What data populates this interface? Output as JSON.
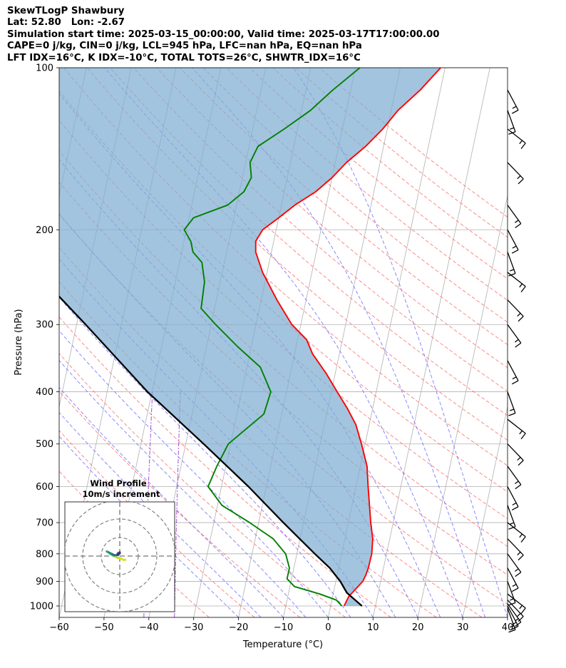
{
  "header": {
    "lines": [
      "SkewTLogP Shawbury",
      "Lat: 52.80   Lon: -2.67",
      "Simulation start time: 2025-03-15_00:00:00, Valid time: 2025-03-17T17:00:00.00",
      "CAPE=0 j/kg, CIN=0 j/kg, LCL=945 hPa, LFC=nan hPa, EQ=nan hPa",
      "LFT IDX=16$^\\circ$C, K IDX=-10$^\\circ$C, TOTAL TOTS=26$^\\circ$C, SHWTR_IDX=16$^\\circ$C"
    ]
  },
  "chart_data": {
    "type": "skewt",
    "xlabel": "Temperature ($^\\circ$C)",
    "ylabel": "Pressure (hPa)",
    "xlim": [
      -60,
      40
    ],
    "ylim": [
      1050,
      100
    ],
    "log_y": true,
    "grid": true,
    "x_ticks": [
      -60,
      -50,
      -40,
      -30,
      -20,
      -10,
      0,
      10,
      20,
      30,
      40
    ],
    "y_ticks": [
      1000,
      900,
      800,
      700,
      600,
      500,
      400,
      300,
      200,
      100
    ],
    "colors": {
      "temperature": "#ff0000",
      "dewpoint": "#008000",
      "parcel": "#000000",
      "cape_fill": "#7fadd1",
      "dry_adiabats": "#ff6666",
      "moist_adiabats": "#6666ff",
      "mixing_ratio": "#9933cc",
      "isotherms": "#b0b0b0"
    },
    "temperature": {
      "p": [
        1000,
        960,
        925,
        900,
        875,
        850,
        800,
        750,
        700,
        600,
        550,
        500,
        460,
        430,
        400,
        370,
        340,
        320,
        300,
        270,
        240,
        220,
        210,
        200,
        190,
        180,
        170,
        160,
        150,
        140,
        130,
        120,
        110,
        100
      ],
      "t": [
        3,
        3.6,
        5,
        6,
        6.4,
        6.6,
        6.7,
        6.2,
        5,
        2.7,
        1.5,
        -0.8,
        -3,
        -5.6,
        -8.7,
        -12,
        -16,
        -18,
        -22,
        -26.5,
        -31,
        -33.5,
        -34,
        -33,
        -30,
        -27,
        -23,
        -20,
        -17.5,
        -14,
        -11,
        -8.5,
        -4.5,
        -1
      ]
    },
    "dewpoint": {
      "p": [
        1000,
        975,
        950,
        920,
        890,
        850,
        800,
        750,
        700,
        650,
        600,
        550,
        500,
        440,
        400,
        360,
        330,
        300,
        280,
        250,
        230,
        220,
        210,
        200,
        190,
        180,
        170,
        160,
        150,
        140,
        130,
        120,
        110,
        100
      ],
      "t": [
        2.5,
        1,
        -3,
        -9,
        -11,
        -11,
        -12.5,
        -16,
        -22,
        -29,
        -33,
        -32,
        -30.5,
        -24,
        -23.5,
        -27,
        -33,
        -39,
        -43,
        -43.5,
        -45,
        -47.5,
        -48.5,
        -50.5,
        -49,
        -42,
        -39,
        -38,
        -39,
        -38,
        -33,
        -28,
        -24,
        -19
      ]
    },
    "parcel": {
      "p": [
        1000,
        945,
        900,
        850,
        800,
        700,
        600,
        500,
        400,
        300,
        250,
        200,
        150,
        100
      ],
      "t": [
        7,
        3,
        1,
        -2,
        -6,
        -14.5,
        -24,
        -36,
        -51,
        -68,
        -79,
        -93,
        -111,
        -139
      ]
    },
    "wind_barbs": [
      {
        "p": 1010
      },
      {
        "p": 1000
      },
      {
        "p": 990
      },
      {
        "p": 975
      },
      {
        "p": 950
      },
      {
        "p": 900
      },
      {
        "p": 850
      },
      {
        "p": 800
      },
      {
        "p": 750
      },
      {
        "p": 700
      },
      {
        "p": 650
      },
      {
        "p": 600
      },
      {
        "p": 550
      },
      {
        "p": 500
      },
      {
        "p": 450
      },
      {
        "p": 400
      },
      {
        "p": 350
      },
      {
        "p": 300
      },
      {
        "p": 270
      },
      {
        "p": 240
      },
      {
        "p": 220
      },
      {
        "p": 200
      },
      {
        "p": 180
      },
      {
        "p": 150
      },
      {
        "p": 130
      },
      {
        "p": 120
      },
      {
        "p": 110
      }
    ],
    "hodograph": {
      "title": "Wind Profile",
      "subtitle": "10m/s increment",
      "rings": [
        10,
        20,
        30
      ],
      "u": [
        3,
        2,
        1,
        -1,
        -2,
        -3,
        -4,
        -5,
        -6,
        -7,
        -6,
        -5,
        -4,
        -3,
        -2,
        -1,
        -1,
        0,
        0,
        -1
      ],
      "v": [
        -2,
        -2,
        -1.5,
        -1,
        -0.5,
        0,
        0.5,
        1,
        2,
        2.5,
        2,
        1.5,
        1,
        0.5,
        0.5,
        1,
        1.5,
        2,
        1.5,
        0.5
      ]
    }
  }
}
